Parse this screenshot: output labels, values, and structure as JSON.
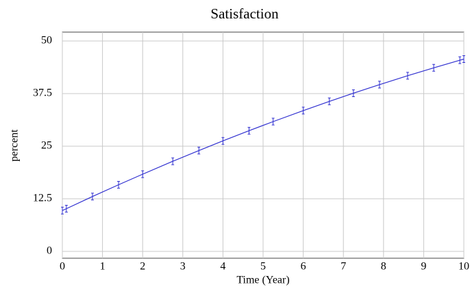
{
  "chart_data": {
    "type": "line",
    "title": "Satisfaction",
    "x_label": "Time (Year)",
    "y_label": "percent",
    "x": [
      0,
      0.1,
      0.75,
      1.4,
      2,
      2.75,
      3.4,
      4,
      4.65,
      5.25,
      6,
      6.65,
      7.25,
      7.9,
      8.6,
      9.25,
      9.9,
      10
    ],
    "series": [
      {
        "name": "Satisfaction",
        "color": "#3030d0",
        "values": [
          9.7,
          10.15,
          13.03,
          15.83,
          18.34,
          21.41,
          23.96,
          26.26,
          28.68,
          30.84,
          33.46,
          35.65,
          37.59,
          39.63,
          41.75,
          43.62,
          45.43,
          45.7
        ]
      }
    ],
    "xlim": [
      0,
      10
    ],
    "xticks": [
      0,
      1,
      2,
      3,
      4,
      5,
      6,
      7,
      8,
      9,
      10
    ],
    "ylim": [
      0,
      50
    ],
    "yticks": [
      0,
      12.5,
      25,
      37.5,
      50
    ],
    "grid": true
  }
}
